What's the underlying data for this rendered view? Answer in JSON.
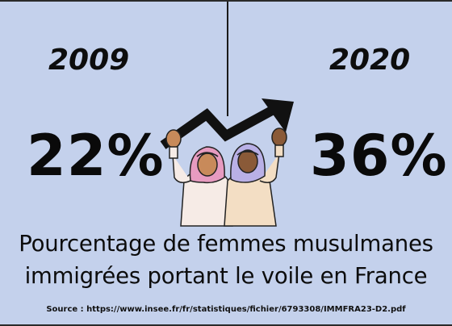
{
  "left": {
    "year": "2009",
    "percent": "22%"
  },
  "right": {
    "year": "2020",
    "percent": "36%"
  },
  "caption": {
    "line1": "Pourcentage de femmes musulmanes",
    "line2": "immigrées portant le voile en France"
  },
  "source": "Source : https://www.insee.fr/fr/statistiques/fichier/6793308/IMMFRA23-D2.pdf",
  "colors": {
    "background": "#c4d1ec",
    "text": "#0c0c0c",
    "hijab_left": "#e79bc0",
    "hijab_right": "#b9b0e6",
    "arrow": "#111111"
  },
  "illustration": {
    "icon": "two-women-raised-fists-arrow-icon"
  }
}
